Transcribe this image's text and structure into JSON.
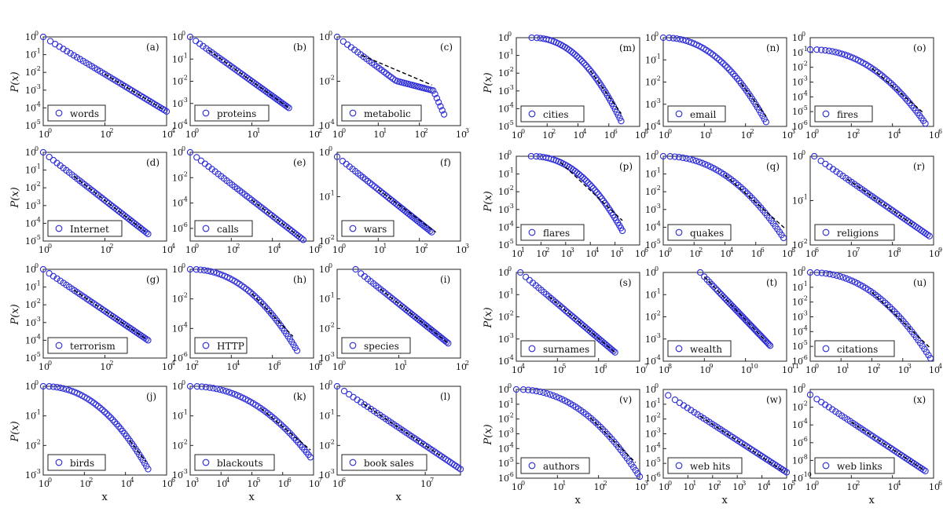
{
  "figure": {
    "ylabel": "P(x)",
    "xlabel": "x"
  },
  "chart_data": [
    {
      "type": "scatter",
      "panel": "(a)",
      "legend": "words",
      "xscale": "log",
      "yscale": "log",
      "xlim_exp": [
        0,
        4
      ],
      "ylim_exp": [
        -5,
        0
      ],
      "xticks": [
        "10",
        "10",
        "10"
      ],
      "xtick_exps": [
        "0",
        "2",
        "4"
      ],
      "yticks_exps": [
        "0",
        "-1",
        "-2",
        "-3",
        "-4",
        "-5"
      ],
      "x_log10_range": [
        0,
        4.0
      ],
      "y_log10_range": [
        0,
        -4.2
      ],
      "shape": "powerlaw",
      "fit": {
        "from_log10_x": 2.0,
        "to_log10_x": 3.9
      }
    },
    {
      "type": "scatter",
      "panel": "(b)",
      "legend": "proteins",
      "xscale": "log",
      "yscale": "log",
      "xlim_exp": [
        0,
        2
      ],
      "ylim_exp": [
        -4,
        0
      ],
      "xtick_exps": [
        "0",
        "1",
        "2"
      ],
      "yticks_exps": [
        "0",
        "-1",
        "-2",
        "-3",
        "-4"
      ],
      "x_log10_range": [
        0,
        1.6
      ],
      "y_log10_range": [
        0,
        -3.2
      ],
      "shape": "powerlaw",
      "fit": {
        "from_log10_x": 0.3,
        "to_log10_x": 1.6
      }
    },
    {
      "type": "scatter",
      "panel": "(c)",
      "legend": "metabolic",
      "xscale": "log",
      "yscale": "log",
      "xlim_exp": [
        0,
        3
      ],
      "ylim_exp": [
        -4,
        0
      ],
      "xtick_exps": [
        "0",
        "1",
        "2",
        "3"
      ],
      "yticks_exps": [
        "0",
        "-2",
        "-4"
      ],
      "x_log10_range": [
        0,
        2.6
      ],
      "y_log10_range": [
        0,
        -3.6
      ],
      "shape": "bump",
      "fit": {
        "from_log10_x": 0.6,
        "to_log10_x": 2.3
      }
    },
    {
      "type": "scatter",
      "panel": "(d)",
      "legend": "Internet",
      "xscale": "log",
      "yscale": "log",
      "xlim_exp": [
        0,
        4
      ],
      "ylim_exp": [
        -5,
        0
      ],
      "xtick_exps": [
        "0",
        "2",
        "4"
      ],
      "yticks_exps": [
        "0",
        "-1",
        "-2",
        "-3",
        "-4",
        "-5"
      ],
      "x_log10_range": [
        0,
        3.4
      ],
      "y_log10_range": [
        0,
        -4.6
      ],
      "shape": "powerlaw",
      "fit": {
        "from_log10_x": 1.0,
        "to_log10_x": 3.3
      }
    },
    {
      "type": "scatter",
      "panel": "(e)",
      "legend": "calls",
      "xscale": "log",
      "yscale": "log",
      "xlim_exp": [
        0,
        6
      ],
      "ylim_exp": [
        -7,
        0
      ],
      "xtick_exps": [
        "0",
        "2",
        "4",
        "6"
      ],
      "yticks_exps": [
        "0",
        "-2",
        "-4",
        "-6"
      ],
      "x_log10_range": [
        0,
        5.5
      ],
      "y_log10_range": [
        0,
        -6.9
      ],
      "shape": "powerlaw",
      "fit": {
        "from_log10_x": 3.0,
        "to_log10_x": 5.4
      }
    },
    {
      "type": "scatter",
      "panel": "(f)",
      "legend": "wars",
      "xscale": "log",
      "yscale": "log",
      "xlim_exp": [
        0,
        3
      ],
      "ylim_exp": [
        -2,
        0
      ],
      "xtick_exps": [
        "0",
        "1",
        "2",
        "3"
      ],
      "yticks_exps": [
        "0",
        "-1",
        "-2"
      ],
      "x_log10_range": [
        0,
        2.3
      ],
      "y_log10_range": [
        -0.1,
        -1.8
      ],
      "shape": "powerlaw",
      "fit": {
        "from_log10_x": 1.0,
        "to_log10_x": 2.4
      }
    },
    {
      "type": "scatter",
      "panel": "(g)",
      "legend": "terrorism",
      "xscale": "log",
      "yscale": "log",
      "xlim_exp": [
        0,
        4
      ],
      "ylim_exp": [
        -5,
        0
      ],
      "xtick_exps": [
        "0",
        "2",
        "4"
      ],
      "yticks_exps": [
        "0",
        "-1",
        "-2",
        "-3",
        "-4",
        "-5"
      ],
      "x_log10_range": [
        0,
        3.4
      ],
      "y_log10_range": [
        0,
        -4.0
      ],
      "shape": "powerlaw",
      "fit": {
        "from_log10_x": 1.0,
        "to_log10_x": 3.3
      }
    },
    {
      "type": "scatter",
      "panel": "(h)",
      "legend": "HTTP",
      "xscale": "log",
      "yscale": "log",
      "xlim_exp": [
        2,
        8
      ],
      "ylim_exp": [
        -6,
        0
      ],
      "xtick_exps": [
        "2",
        "4",
        "6",
        "8"
      ],
      "yticks_exps": [
        "0",
        "-2",
        "-4",
        "-6"
      ],
      "x_log10_range": [
        2,
        7.2
      ],
      "y_log10_range": [
        0,
        -5.5
      ],
      "shape": "curve",
      "fit": {
        "from_log10_x": 5.0,
        "to_log10_x": 7.0
      }
    },
    {
      "type": "scatter",
      "panel": "(i)",
      "legend": "species",
      "xscale": "log",
      "yscale": "log",
      "xlim_exp": [
        0,
        2
      ],
      "ylim_exp": [
        -3,
        0
      ],
      "xtick_exps": [
        "0",
        "1",
        "2"
      ],
      "yticks_exps": [
        "0",
        "-1",
        "-2",
        "-3"
      ],
      "x_log10_range": [
        0.3,
        1.8
      ],
      "y_log10_range": [
        0,
        -2.5
      ],
      "shape": "powerlaw",
      "fit": {
        "from_log10_x": 0.7,
        "to_log10_x": 1.8
      }
    },
    {
      "type": "scatter",
      "panel": "(j)",
      "legend": "birds",
      "xscale": "log",
      "yscale": "log",
      "xlim_exp": [
        0,
        6
      ],
      "ylim_exp": [
        -3,
        0
      ],
      "xtick_exps": [
        "0",
        "2",
        "4",
        "6"
      ],
      "yticks_exps": [
        "0",
        "-1",
        "-2",
        "-3"
      ],
      "x_log10_range": [
        0,
        5.1
      ],
      "y_log10_range": [
        0,
        -2.8
      ],
      "shape": "curve",
      "fit": {
        "from_log10_x": 4.2,
        "to_log10_x": 5.0
      }
    },
    {
      "type": "scatter",
      "panel": "(k)",
      "legend": "blackouts",
      "xscale": "log",
      "yscale": "log",
      "xlim_exp": [
        3,
        7
      ],
      "ylim_exp": [
        -3,
        0
      ],
      "xtick_exps": [
        "3",
        "4",
        "5",
        "6",
        "7"
      ],
      "yticks_exps": [
        "0",
        "-1",
        "-2",
        "-3"
      ],
      "x_log10_range": [
        3,
        6.9
      ],
      "y_log10_range": [
        0,
        -2.4
      ],
      "shape": "curve",
      "fit": {
        "from_log10_x": 5.3,
        "to_log10_x": 6.9
      }
    },
    {
      "type": "scatter",
      "panel": "(l)",
      "legend": "book sales",
      "xscale": "log",
      "yscale": "log",
      "xlim_exp": [
        6,
        7.4
      ],
      "ylim_exp": [
        -3,
        0
      ],
      "xtick_exps": [
        "6",
        "7"
      ],
      "yticks_exps": [
        "0",
        "-1",
        "-2",
        "-3"
      ],
      "x_log10_range": [
        6,
        7.4
      ],
      "y_log10_range": [
        0,
        -2.8
      ],
      "shape": "powerlaw",
      "fit": {
        "from_log10_x": 6.3,
        "to_log10_x": 7.2
      }
    },
    {
      "type": "scatter",
      "panel": "(m)",
      "legend": "cities",
      "xscale": "log",
      "yscale": "log",
      "xlim_exp": [
        0,
        8
      ],
      "ylim_exp": [
        -5,
        0
      ],
      "xtick_exps": [
        "0",
        "2",
        "4",
        "6",
        "8"
      ],
      "yticks_exps": [
        "0",
        "-1",
        "-2",
        "-3",
        "-4",
        "-5"
      ],
      "x_log10_range": [
        1.0,
        6.8
      ],
      "y_log10_range": [
        0,
        -4.7
      ],
      "shape": "curve",
      "fit": {
        "from_log10_x": 4.8,
        "to_log10_x": 6.8
      }
    },
    {
      "type": "scatter",
      "panel": "(n)",
      "legend": "email",
      "xscale": "log",
      "yscale": "log",
      "xlim_exp": [
        0,
        3
      ],
      "ylim_exp": [
        -4,
        0
      ],
      "xtick_exps": [
        "0",
        "1",
        "2",
        "3"
      ],
      "yticks_exps": [
        "0",
        "-1",
        "-2",
        "-3",
        "-4"
      ],
      "x_log10_range": [
        0,
        2.5
      ],
      "y_log10_range": [
        0,
        -3.8
      ],
      "shape": "curve",
      "fit": {
        "from_log10_x": 1.9,
        "to_log10_x": 2.5
      }
    },
    {
      "type": "scatter",
      "panel": "(o)",
      "legend": "fires",
      "xscale": "log",
      "yscale": "log",
      "xlim_exp": [
        0,
        6
      ],
      "ylim_exp": [
        -6,
        0
      ],
      "xtick_exps": [
        "0",
        "2",
        "4",
        "6"
      ],
      "yticks_exps": [
        "0",
        "-1",
        "-2",
        "-3",
        "-4",
        "-5",
        "-6"
      ],
      "x_log10_range": [
        0,
        5.6
      ],
      "y_log10_range": [
        -0.8,
        -5.8
      ],
      "shape": "curve",
      "fit": {
        "from_log10_x": 3.0,
        "to_log10_x": 5.5
      }
    },
    {
      "type": "scatter",
      "panel": "(p)",
      "legend": "flares",
      "xscale": "log",
      "yscale": "log",
      "xlim_exp": [
        1,
        6
      ],
      "ylim_exp": [
        -5,
        0
      ],
      "xtick_exps": [
        "1",
        "2",
        "3",
        "4",
        "5",
        "6"
      ],
      "yticks_exps": [
        "0",
        "-1",
        "-2",
        "-3",
        "-4",
        "-5"
      ],
      "x_log10_range": [
        1.6,
        5.3
      ],
      "y_log10_range": [
        0,
        -4.2
      ],
      "shape": "curve",
      "fit": {
        "from_log10_x": 2.8,
        "to_log10_x": 5.3
      }
    },
    {
      "type": "scatter",
      "panel": "(q)",
      "legend": "quakes",
      "xscale": "log",
      "yscale": "log",
      "xlim_exp": [
        0,
        8
      ],
      "ylim_exp": [
        -5,
        0
      ],
      "xtick_exps": [
        "0",
        "2",
        "4",
        "6",
        "8"
      ],
      "yticks_exps": [
        "0",
        "-1",
        "-2",
        "-3",
        "-4",
        "-5"
      ],
      "x_log10_range": [
        0,
        7.8
      ],
      "y_log10_range": [
        0,
        -4.6
      ],
      "shape": "curve",
      "fit": {
        "from_log10_x": 4.0,
        "to_log10_x": 8.0
      }
    },
    {
      "type": "scatter",
      "panel": "(r)",
      "legend": "religions",
      "xscale": "log",
      "yscale": "log",
      "xlim_exp": [
        6,
        9
      ],
      "ylim_exp": [
        -2,
        0
      ],
      "xtick_exps": [
        "6",
        "7",
        "8",
        "9"
      ],
      "yticks_exps": [
        "0",
        "-1",
        "-2"
      ],
      "x_log10_range": [
        6.1,
        8.9
      ],
      "y_log10_range": [
        0,
        -1.8
      ],
      "shape": "powerlaw",
      "fit": {
        "from_log10_x": 6.9,
        "to_log10_x": 8.5
      }
    },
    {
      "type": "scatter",
      "panel": "(s)",
      "legend": "surnames",
      "xscale": "log",
      "yscale": "log",
      "xlim_exp": [
        4,
        7
      ],
      "ylim_exp": [
        -4,
        0
      ],
      "xtick_exps": [
        "4",
        "5",
        "6",
        "7"
      ],
      "yticks_exps": [
        "0",
        "-1",
        "-2",
        "-3",
        "-4"
      ],
      "x_log10_range": [
        4.1,
        6.4
      ],
      "y_log10_range": [
        0,
        -3.6
      ],
      "shape": "powerlaw",
      "fit": {
        "from_log10_x": 4.8,
        "to_log10_x": 6.4
      }
    },
    {
      "type": "scatter",
      "panel": "(t)",
      "legend": "wealth",
      "xscale": "log",
      "yscale": "log",
      "xlim_exp": [
        8,
        11
      ],
      "ylim_exp": [
        -4,
        0
      ],
      "xtick_exps": [
        "8",
        "9",
        "10",
        "11"
      ],
      "yticks_exps": [
        "0",
        "-1",
        "-2",
        "-3",
        "-4"
      ],
      "x_log10_range": [
        8.9,
        10.6
      ],
      "y_log10_range": [
        0,
        -3.3
      ],
      "shape": "powerlaw",
      "fit": {
        "from_log10_x": 9.0,
        "to_log10_x": 10.5
      }
    },
    {
      "type": "scatter",
      "panel": "(u)",
      "legend": "citations",
      "xscale": "log",
      "yscale": "log",
      "xlim_exp": [
        0,
        4
      ],
      "ylim_exp": [
        -6,
        0
      ],
      "xtick_exps": [
        "0",
        "1",
        "2",
        "3",
        "4"
      ],
      "yticks_exps": [
        "0",
        "-1",
        "-2",
        "-3",
        "-4",
        "-5",
        "-6"
      ],
      "x_log10_range": [
        0,
        3.9
      ],
      "y_log10_range": [
        0,
        -5.8
      ],
      "shape": "curve",
      "fit": {
        "from_log10_x": 2.0,
        "to_log10_x": 3.9
      }
    },
    {
      "type": "scatter",
      "panel": "(v)",
      "legend": "authors",
      "xscale": "log",
      "yscale": "log",
      "xlim_exp": [
        0,
        3
      ],
      "ylim_exp": [
        -6,
        0
      ],
      "xtick_exps": [
        "0",
        "1",
        "2",
        "3"
      ],
      "yticks_exps": [
        "0",
        "-1",
        "-2",
        "-3",
        "-4",
        "-5",
        "-6"
      ],
      "x_log10_range": [
        0,
        3.0
      ],
      "y_log10_range": [
        0,
        -5.9
      ],
      "shape": "curve",
      "fit": {
        "from_log10_x": 1.8,
        "to_log10_x": 2.9
      }
    },
    {
      "type": "scatter",
      "panel": "(w)",
      "legend": "web hits",
      "xscale": "log",
      "yscale": "log",
      "xlim_exp": [
        0,
        5
      ],
      "ylim_exp": [
        -6,
        0
      ],
      "xtick_exps": [
        "0",
        "1",
        "2",
        "3",
        "4",
        "5"
      ],
      "yticks_exps": [
        "0",
        "-1",
        "-2",
        "-3",
        "-4",
        "-5",
        "-6"
      ],
      "x_log10_range": [
        0.2,
        5.0
      ],
      "y_log10_range": [
        -0.4,
        -5.6
      ],
      "shape": "powerlaw",
      "fit": {
        "from_log10_x": 1.5,
        "to_log10_x": 5.0
      }
    },
    {
      "type": "scatter",
      "panel": "(x)",
      "legend": "web links",
      "xscale": "log",
      "yscale": "log",
      "xlim_exp": [
        0,
        6
      ],
      "ylim_exp": [
        -10,
        0
      ],
      "xtick_exps": [
        "0",
        "2",
        "4",
        "6"
      ],
      "yticks_exps": [
        "0",
        "-2",
        "-4",
        "-6",
        "-8",
        "-10"
      ],
      "x_log10_range": [
        0,
        5.6
      ],
      "y_log10_range": [
        -0.6,
        -9.2
      ],
      "shape": "powerlaw",
      "fit": {
        "from_log10_x": 2.0,
        "to_log10_x": 5.5
      }
    }
  ]
}
